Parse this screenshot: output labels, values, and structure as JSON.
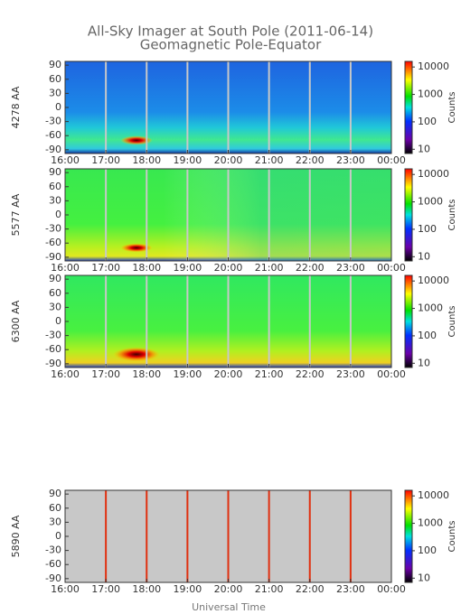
{
  "title": "All-Sky Imager at South Pole (2011-06-14)",
  "subtitle": "Geomagnetic Pole-Equator",
  "xlabel": "Universal Time",
  "chart_data": [
    {
      "type": "heatmap",
      "ylabel": "4278 AA",
      "xlim": [
        16,
        24
      ],
      "xticks": [
        {
          "value": 16,
          "label": "16:00"
        },
        {
          "value": 17,
          "label": "17:00"
        },
        {
          "value": 18,
          "label": "18:00"
        },
        {
          "value": 19,
          "label": "19:00"
        },
        {
          "value": 20,
          "label": "20:00"
        },
        {
          "value": 21,
          "label": "21:00"
        },
        {
          "value": 22,
          "label": "22:00"
        },
        {
          "value": 23,
          "label": "23:00"
        },
        {
          "value": 24,
          "label": "00:00"
        }
      ],
      "ylim": [
        -98,
        98
      ],
      "yticks": [
        -90,
        -60,
        -30,
        0,
        30,
        60,
        90
      ],
      "clim": [
        7,
        16000
      ],
      "cticks": [
        10,
        100,
        1000,
        10000
      ],
      "clabel": "Counts",
      "cscale": "log",
      "grid_color": "#c8c8c8"
    },
    {
      "type": "heatmap",
      "ylabel": "5577 AA",
      "xlim": [
        16,
        24
      ],
      "xticks": [
        {
          "value": 16,
          "label": "16:00"
        },
        {
          "value": 17,
          "label": "17:00"
        },
        {
          "value": 18,
          "label": "18:00"
        },
        {
          "value": 19,
          "label": "19:00"
        },
        {
          "value": 20,
          "label": "20:00"
        },
        {
          "value": 21,
          "label": "21:00"
        },
        {
          "value": 22,
          "label": "22:00"
        },
        {
          "value": 23,
          "label": "23:00"
        },
        {
          "value": 24,
          "label": "00:00"
        }
      ],
      "ylim": [
        -98,
        98
      ],
      "yticks": [
        -90,
        -60,
        -30,
        0,
        30,
        60,
        90
      ],
      "clim": [
        7,
        16000
      ],
      "cticks": [
        10,
        100,
        1000,
        10000
      ],
      "clabel": "Counts",
      "cscale": "log",
      "grid_color": "#c8c8c8"
    },
    {
      "type": "heatmap",
      "ylabel": "6300 AA",
      "xlim": [
        16,
        24
      ],
      "xticks": [
        {
          "value": 16,
          "label": "16:00"
        },
        {
          "value": 17,
          "label": "17:00"
        },
        {
          "value": 18,
          "label": "18:00"
        },
        {
          "value": 19,
          "label": "19:00"
        },
        {
          "value": 20,
          "label": "20:00"
        },
        {
          "value": 21,
          "label": "21:00"
        },
        {
          "value": 22,
          "label": "22:00"
        },
        {
          "value": 23,
          "label": "23:00"
        },
        {
          "value": 24,
          "label": "00:00"
        }
      ],
      "ylim": [
        -98,
        98
      ],
      "yticks": [
        -90,
        -60,
        -30,
        0,
        30,
        60,
        90
      ],
      "clim": [
        7,
        16000
      ],
      "cticks": [
        10,
        100,
        1000,
        10000
      ],
      "clabel": "Counts",
      "cscale": "log",
      "grid_color": "#c8c8c8"
    },
    {
      "type": "heatmap",
      "ylabel": "5890 AA",
      "xlim": [
        16,
        24
      ],
      "xticks": [
        {
          "value": 16,
          "label": "16:00"
        },
        {
          "value": 17,
          "label": "17:00"
        },
        {
          "value": 18,
          "label": "18:00"
        },
        {
          "value": 19,
          "label": "19:00"
        },
        {
          "value": 20,
          "label": "20:00"
        },
        {
          "value": 21,
          "label": "21:00"
        },
        {
          "value": 22,
          "label": "22:00"
        },
        {
          "value": 23,
          "label": "23:00"
        },
        {
          "value": 24,
          "label": "00:00"
        }
      ],
      "ylim": [
        -98,
        98
      ],
      "yticks": [
        -90,
        -60,
        -30,
        0,
        30,
        60,
        90
      ],
      "clim": [
        7,
        16000
      ],
      "cticks": [
        10,
        100,
        1000,
        10000
      ],
      "clabel": "Counts",
      "cscale": "log",
      "grid_color": "#e03010"
    }
  ]
}
